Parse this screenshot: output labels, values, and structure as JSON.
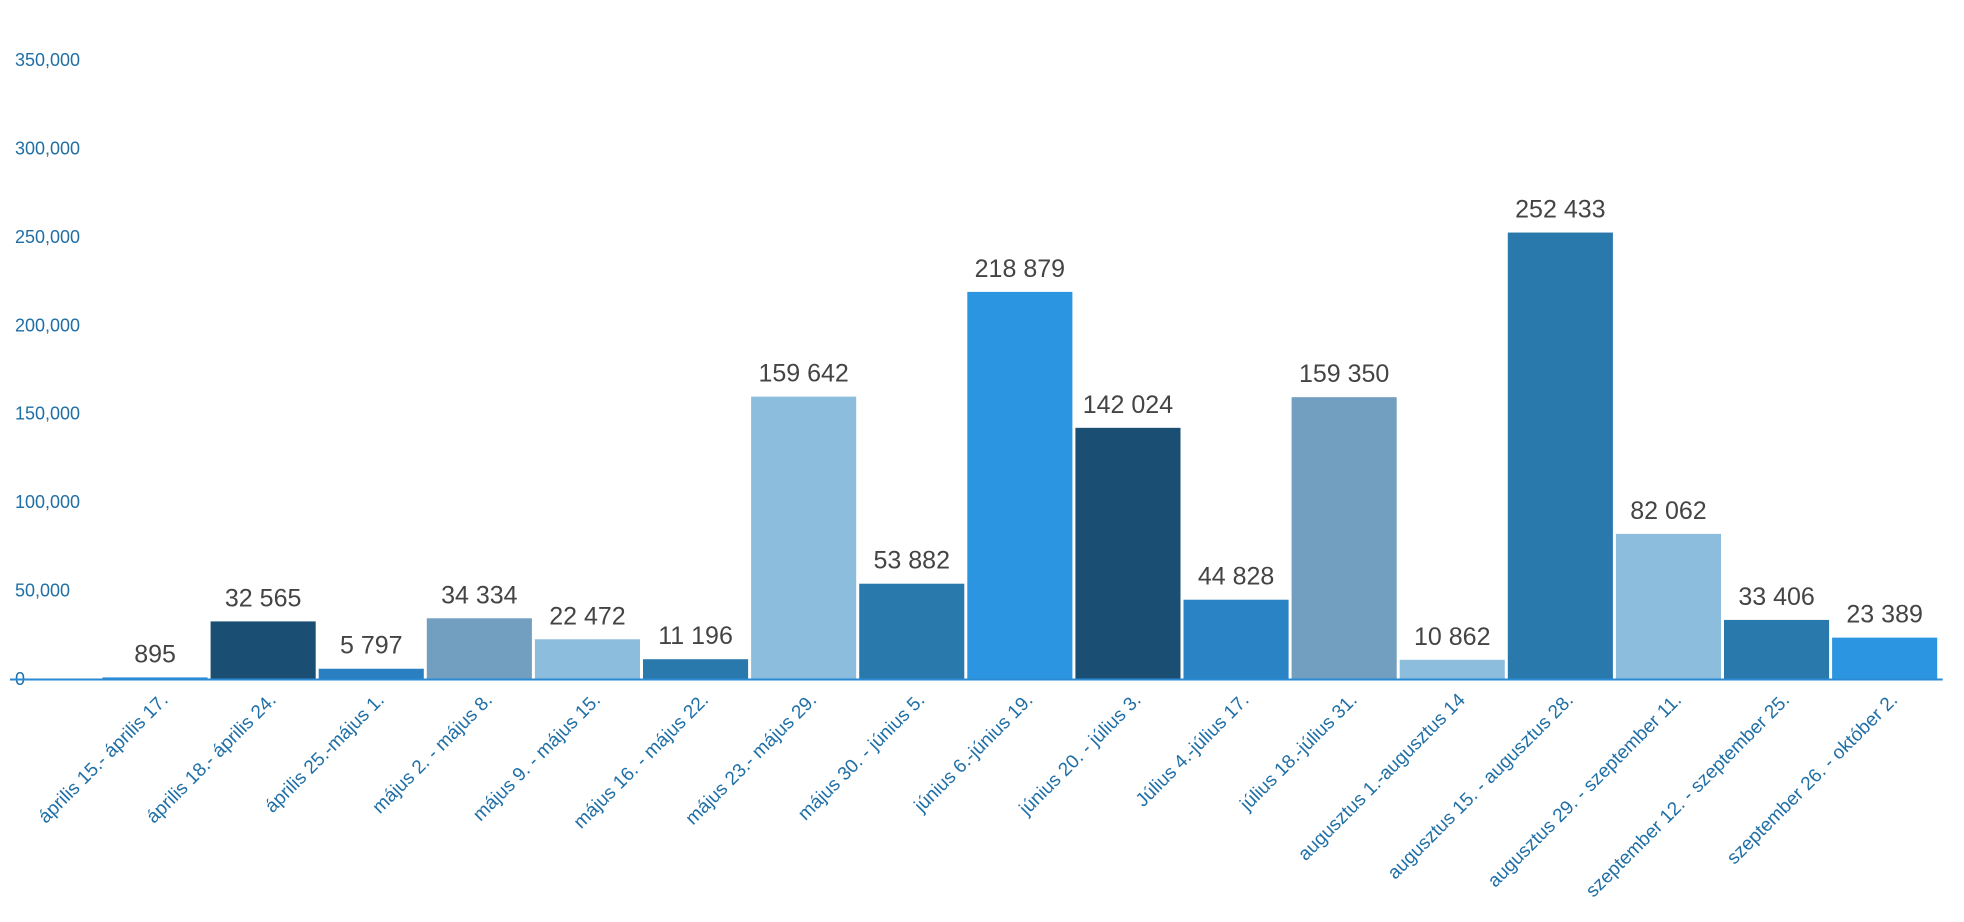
{
  "chart_data": {
    "type": "bar",
    "title": "",
    "xlabel": "",
    "ylabel": "",
    "ylim": [
      0,
      350000
    ],
    "yticks": [
      0,
      50000,
      100000,
      150000,
      200000,
      250000,
      300000,
      350000
    ],
    "ytick_labels": [
      "0",
      "50,000",
      "100,000",
      "150,000",
      "200,000",
      "250,000",
      "300,000",
      "350,000"
    ],
    "grid": false,
    "legend": "none",
    "categories": [
      "április 15.- április 17.",
      "április 18.- április 24.",
      "április 25.-május 1.",
      "május 2. - május 8.",
      "május 9. - május 15.",
      "május 16. - május 22.",
      "május 23.- május 29.",
      "május 30. - június 5.",
      "június 6.-június 19.",
      "június 20. - július 3.",
      "Július 4.-július 17.",
      "július 18.-július 31.",
      "augusztus 1.-augusztus 14",
      "augusztus 15. - augusztus 28.",
      "augusztus 29. - szeptember 11.",
      "szeptember 12. - szeptember 25.",
      "szeptember 26. - október 2."
    ],
    "values": [
      895,
      32565,
      5797,
      34334,
      22472,
      11196,
      159642,
      53882,
      218879,
      142024,
      44828,
      159350,
      10862,
      252433,
      82062,
      33406,
      23389
    ],
    "value_labels": [
      "895",
      "32 565",
      "5 797",
      "34 334",
      "22 472",
      "11 196",
      "159 642",
      "53 882",
      "218 879",
      "142 024",
      "44 828",
      "159 350",
      "10 862",
      "252 433",
      "82 062",
      "33 406",
      "23 389"
    ],
    "bar_colors": [
      "#2a8ad3",
      "#1a4f73",
      "#2a7fc0",
      "#729fbf",
      "#8dbddd",
      "#2a79ad",
      "#8dbddd",
      "#2a79ad",
      "#2b95e2",
      "#1a4f73",
      "#2a83c4",
      "#729fbf",
      "#8dbddd",
      "#2a79ad",
      "#8dbddd",
      "#2a79ad",
      "#2b95e2"
    ],
    "axis_color": "#2a8ad3"
  }
}
